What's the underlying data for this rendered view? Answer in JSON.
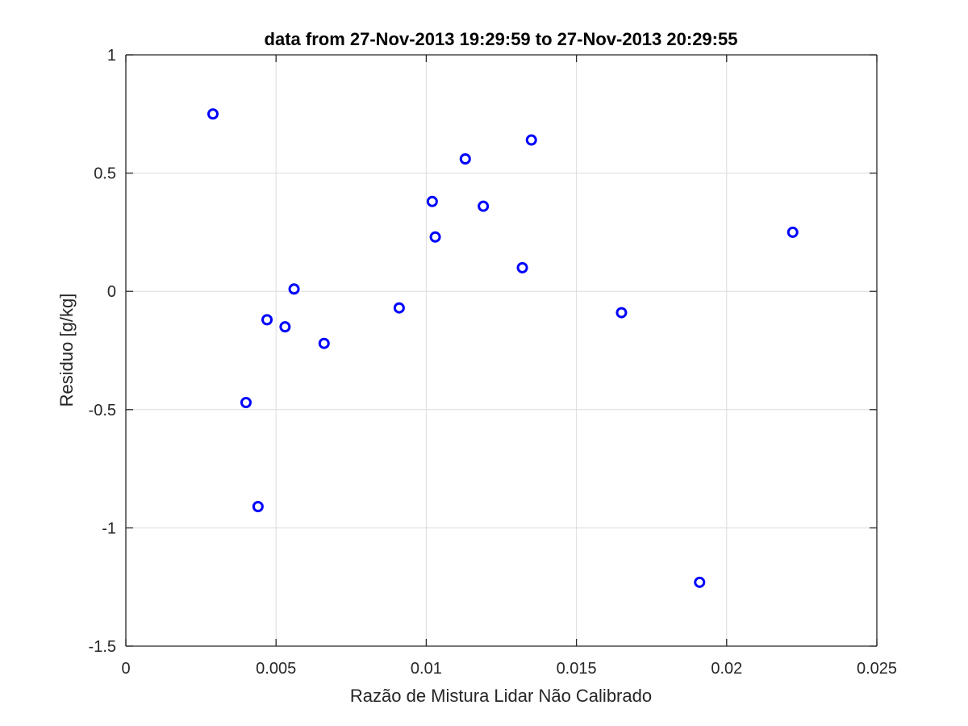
{
  "chart_data": {
    "type": "scatter",
    "title": "data from 27-Nov-2013 19:29:59 to 27-Nov-2013 20:29:55",
    "xlabel": "Razão de Mistura Lidar Não Calibrado",
    "ylabel": "Residuo [g/kg]",
    "xlim": [
      0,
      0.025
    ],
    "ylim": [
      -1.5,
      1
    ],
    "xticks": [
      0,
      0.005,
      0.01,
      0.015,
      0.02,
      0.025
    ],
    "xtick_labels": [
      "0",
      "0.005",
      "0.01",
      "0.015",
      "0.02",
      "0.025"
    ],
    "yticks": [
      -1.5,
      -1,
      -0.5,
      0,
      0.5,
      1
    ],
    "ytick_labels": [
      "-1.5",
      "-1",
      "-0.5",
      "0",
      "0.5",
      "1"
    ],
    "grid": true,
    "marker": "circle",
    "color": "#0000ff",
    "points": [
      {
        "x": 0.0029,
        "y": 0.75
      },
      {
        "x": 0.004,
        "y": -0.47
      },
      {
        "x": 0.0044,
        "y": -0.91
      },
      {
        "x": 0.0047,
        "y": -0.12
      },
      {
        "x": 0.0053,
        "y": -0.15
      },
      {
        "x": 0.0056,
        "y": 0.01
      },
      {
        "x": 0.0066,
        "y": -0.22
      },
      {
        "x": 0.0091,
        "y": -0.07
      },
      {
        "x": 0.0102,
        "y": 0.38
      },
      {
        "x": 0.0103,
        "y": 0.23
      },
      {
        "x": 0.0113,
        "y": 0.56
      },
      {
        "x": 0.0119,
        "y": 0.36
      },
      {
        "x": 0.0132,
        "y": 0.1
      },
      {
        "x": 0.0135,
        "y": 0.64
      },
      {
        "x": 0.0165,
        "y": -0.09
      },
      {
        "x": 0.0191,
        "y": -1.23
      },
      {
        "x": 0.0222,
        "y": 0.25
      }
    ]
  }
}
